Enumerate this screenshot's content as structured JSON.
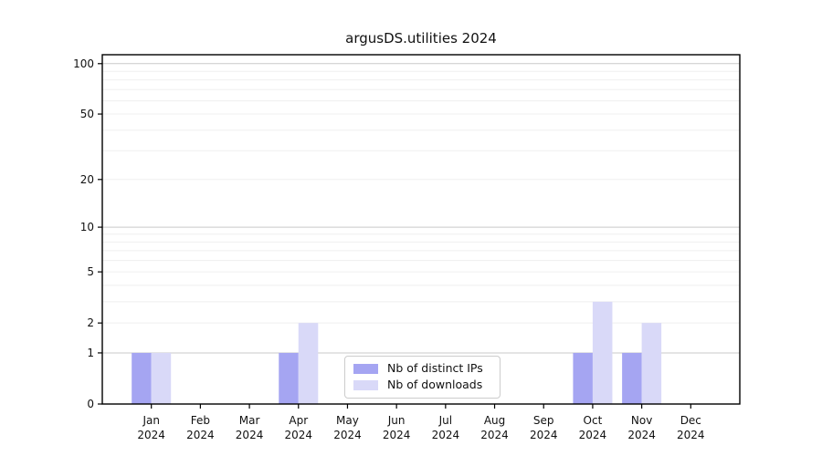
{
  "chart_data": {
    "type": "bar",
    "title": "argusDS.utilities 2024",
    "categories": [
      "Jan",
      "Feb",
      "Mar",
      "Apr",
      "May",
      "Jun",
      "Jul",
      "Aug",
      "Sep",
      "Oct",
      "Nov",
      "Dec"
    ],
    "x_year_label": "2024",
    "series": [
      {
        "name": "Nb of distinct IPs",
        "color": "#a5a5f2",
        "values": [
          1,
          0,
          0,
          1,
          0,
          0,
          0,
          0,
          0,
          1,
          1,
          0
        ]
      },
      {
        "name": "Nb of downloads",
        "color": "#d9d9f8",
        "values": [
          1,
          0,
          0,
          2,
          0,
          0,
          0,
          0,
          0,
          3,
          2,
          0
        ]
      }
    ],
    "y_axis": {
      "scale": "log1p",
      "ylim": [
        0,
        113
      ],
      "tick_values": [
        100,
        50,
        20,
        10,
        5,
        2,
        1,
        0
      ],
      "tick_labels": [
        "100",
        "50",
        "20",
        "10",
        "5",
        "2",
        "1",
        "0"
      ],
      "major_gridlines": [
        1,
        10,
        100
      ],
      "minor_gridlines": [
        2,
        3,
        4,
        5,
        6,
        7,
        8,
        9,
        20,
        30,
        40,
        50,
        60,
        70,
        80,
        90
      ]
    },
    "legend_position": "lower center",
    "grid": true
  },
  "colors": {
    "major_grid": "#c9c9c9",
    "minor_grid": "#efefef",
    "spine": "#000000",
    "text": "#111111",
    "background": "#ffffff"
  }
}
